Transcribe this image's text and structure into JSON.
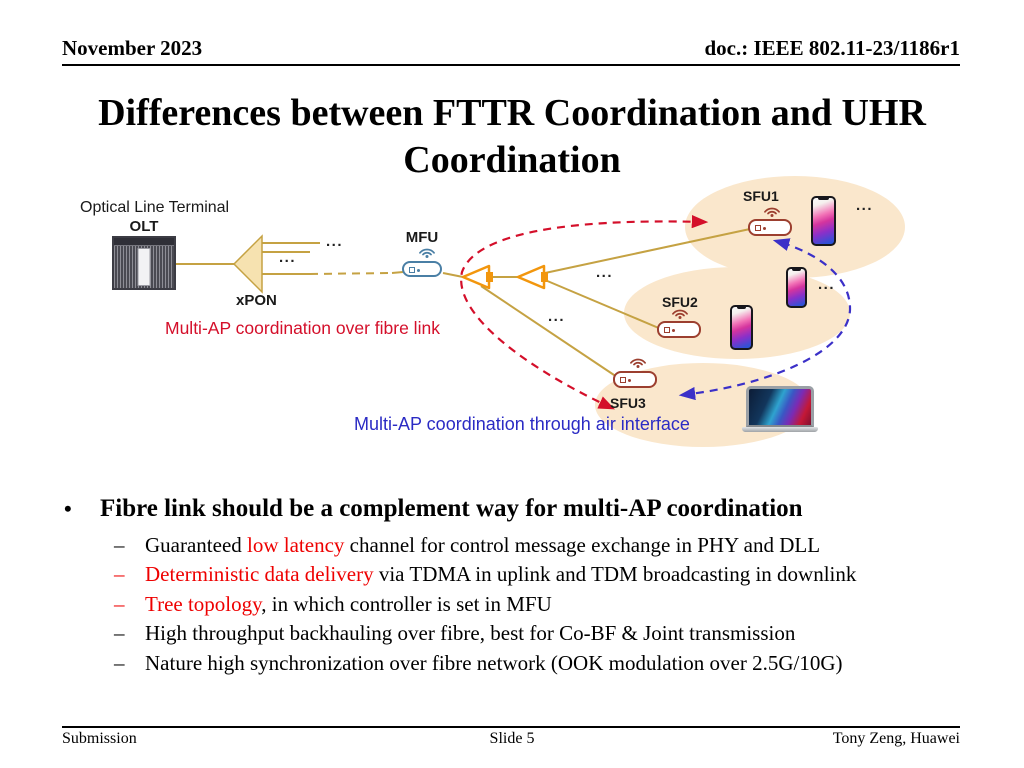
{
  "header": {
    "date": "November 2023",
    "doc": "doc.: IEEE 802.11-23/1186r1"
  },
  "title": {
    "line1": "Differences between FTTR Coordination and UHR",
    "line2": "Coordination"
  },
  "diagram": {
    "olt_caption": "Optical Line Terminal",
    "olt": "OLT",
    "xpon": "xPON",
    "mfu": "MFU",
    "sfu1": "SFU1",
    "sfu2": "SFU2",
    "sfu3": "SFU3",
    "ellipsis": "...",
    "fibre_caption": "Multi-AP coordination over fibre link",
    "air_caption": "Multi-AP coordination through air interface",
    "colors": {
      "red": "#D40F2A",
      "blue": "#3B30C8",
      "blue_text": "#2B2BC4",
      "gold": "#C5A243",
      "zone_fill": "#FAE7CC",
      "orange": "#F2960D",
      "mfu_blue": "#4A7FA5",
      "router_red": "#9C3F2F",
      "bullet_red": "#EE0000"
    }
  },
  "bullets": {
    "marker": "•",
    "main": "Fibre link should be a complement way for multi-AP coordination",
    "items": [
      {
        "dash": "–",
        "dash_red": false,
        "segments": [
          {
            "text": "Guaranteed "
          },
          {
            "text": "low latency",
            "red": true
          },
          {
            "text": " channel for control message exchange in PHY and DLL"
          }
        ]
      },
      {
        "dash": "–",
        "dash_red": true,
        "segments": [
          {
            "text": "Deterministic data delivery",
            "red": true
          },
          {
            "text": " via TDMA in uplink and TDM broadcasting in downlink"
          }
        ]
      },
      {
        "dash": "–",
        "dash_red": true,
        "segments": [
          {
            "text": "Tree topology",
            "red": true
          },
          {
            "text": ", in which controller is set in MFU"
          }
        ]
      },
      {
        "dash": "–",
        "dash_red": false,
        "segments": [
          {
            "text": "High throughput backhauling over fibre, best for Co-BF & Joint transmission"
          }
        ]
      },
      {
        "dash": "–",
        "dash_red": false,
        "segments": [
          {
            "text": "Nature high synchronization over fibre network (OOK modulation over 2.5G/10G)"
          }
        ]
      }
    ]
  },
  "footer": {
    "left": "Submission",
    "center": "Slide 5",
    "right": "Tony Zeng, Huawei"
  }
}
